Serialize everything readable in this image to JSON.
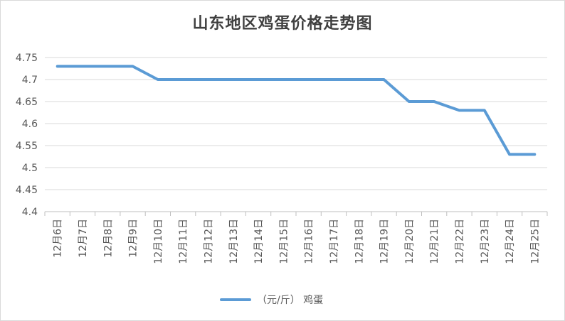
{
  "chart_data": {
    "type": "line",
    "title": "山东地区鸡蛋价格走势图",
    "categories": [
      "12月6日",
      "12月7日",
      "12月8日",
      "12月9日",
      "12月10日",
      "12月11日",
      "12月12日",
      "12月13日",
      "12月14日",
      "12月15日",
      "12月16日",
      "12月17日",
      "12月18日",
      "12月19日",
      "12月20日",
      "12月21日",
      "12月22日",
      "12月23日",
      "12月24日",
      "12月25日"
    ],
    "series": [
      {
        "name": "（元/斤） 鸡蛋",
        "color": "#5b9bd5",
        "values": [
          4.73,
          4.73,
          4.73,
          4.73,
          4.7,
          4.7,
          4.7,
          4.7,
          4.7,
          4.7,
          4.7,
          4.7,
          4.7,
          4.7,
          4.65,
          4.65,
          4.63,
          4.63,
          4.53,
          4.53
        ]
      }
    ],
    "ylim": [
      4.4,
      4.75
    ],
    "yticks": [
      "4.4",
      "4.45",
      "4.5",
      "4.55",
      "4.6",
      "4.65",
      "4.7",
      "4.75"
    ],
    "grid": true,
    "legend_position": "bottom"
  }
}
